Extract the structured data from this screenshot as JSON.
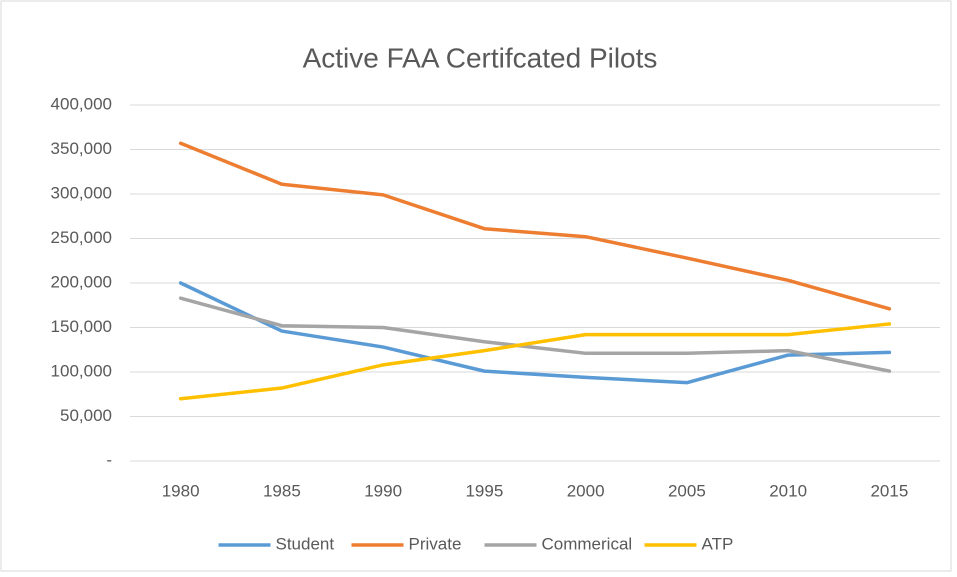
{
  "chart_data": {
    "type": "line",
    "title": "Active FAA Certifcated Pilots",
    "categories": [
      "1980",
      "1985",
      "1990",
      "1995",
      "2000",
      "2005",
      "2010",
      "2015"
    ],
    "series": [
      {
        "name": "Student",
        "color": "#5b9bd5",
        "values": [
          200000,
          146000,
          128000,
          101000,
          94000,
          88000,
          119000,
          122000
        ]
      },
      {
        "name": "Private",
        "color": "#ed7d31",
        "values": [
          357000,
          311000,
          299000,
          261000,
          252000,
          228000,
          203000,
          171000
        ]
      },
      {
        "name": "Commerical",
        "color": "#a5a5a5",
        "values": [
          183000,
          152000,
          150000,
          134000,
          121000,
          121000,
          124000,
          101000
        ]
      },
      {
        "name": "ATP",
        "color": "#ffc000",
        "values": [
          70000,
          82000,
          108000,
          124000,
          142000,
          142000,
          142000,
          154000
        ]
      }
    ],
    "ylim": [
      0,
      400000
    ],
    "yticks": [
      {
        "value": 0,
        "label": "-"
      },
      {
        "value": 50000,
        "label": "50,000"
      },
      {
        "value": 100000,
        "label": "100,000"
      },
      {
        "value": 150000,
        "label": "150,000"
      },
      {
        "value": 200000,
        "label": "200,000"
      },
      {
        "value": 250000,
        "label": "250,000"
      },
      {
        "value": 300000,
        "label": "300,000"
      },
      {
        "value": 350000,
        "label": "350,000"
      },
      {
        "value": 400000,
        "label": "400,000"
      }
    ],
    "grid": true,
    "legend": "bottom"
  }
}
